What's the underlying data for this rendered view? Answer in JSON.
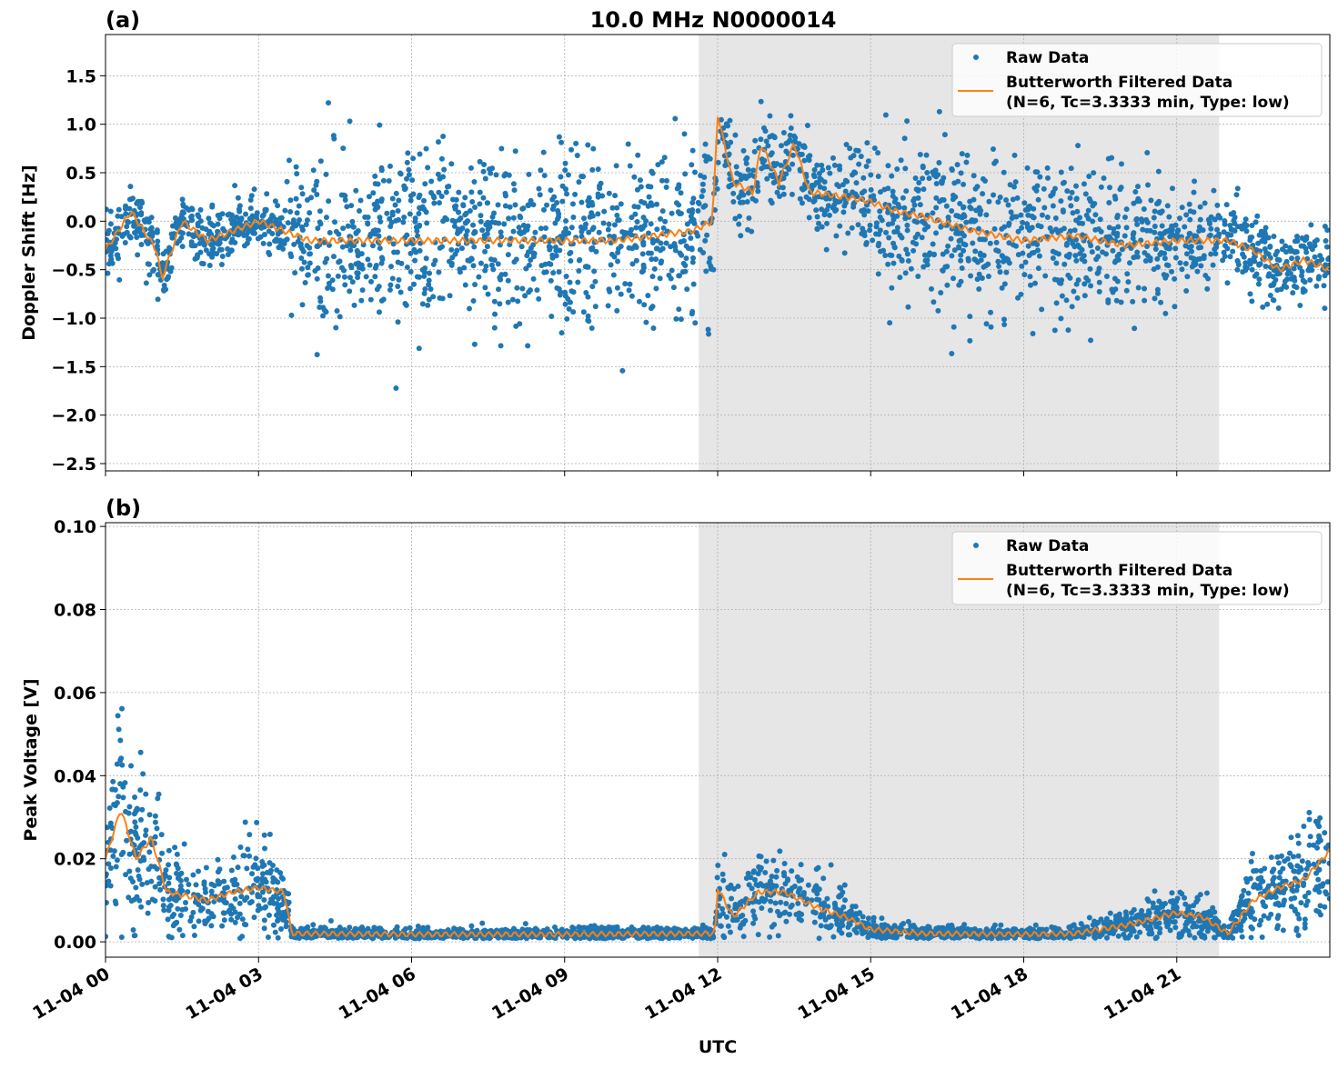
{
  "chart_data": [
    {
      "type": "scatter",
      "panel_label": "(a)",
      "title": "10.0 MHz N0000014",
      "ylabel": "Doppler Shift [Hz]",
      "xlabel": "",
      "xlim_hours": [
        0,
        24
      ],
      "ylim": [
        -2.575,
        1.925
      ],
      "yticks": [
        1.5,
        1.0,
        0.5,
        0.0,
        -0.5,
        -1.0,
        -1.5,
        -2.0,
        -2.5
      ],
      "ytick_labels": [
        "1.5",
        "1.0",
        "0.5",
        "0.0",
        "−0.5",
        "−1.0",
        "−1.5",
        "−2.0",
        "−2.5"
      ],
      "grid": true,
      "legend_position": "top-right",
      "shaded_interval_hours": [
        11.63,
        21.83
      ],
      "series": [
        {
          "name": "Raw Data",
          "style": "points",
          "color": "#1f77b4",
          "spread_hours": [
            0,
            3.5,
            3.6,
            11.9,
            12.1,
            14.8,
            15.2,
            20,
            21,
            22.2,
            24
          ],
          "spread": [
            0.15,
            0.15,
            0.45,
            0.45,
            0.2,
            0.2,
            0.4,
            0.4,
            0.25,
            0.2,
            0.2
          ]
        },
        {
          "name": "Butterworth Filtered Data",
          "name_line2": "(N=6, Tc=3.3333 min, Type: low)",
          "style": "line",
          "color": "#ff7f0e",
          "hours": [
            0,
            0.5,
            1.0,
            1.1,
            1.5,
            2,
            2.5,
            3,
            3.5,
            4,
            6,
            8,
            10,
            11.5,
            11.9,
            12.0,
            12.3,
            12.7,
            12.85,
            13.2,
            13.5,
            13.8,
            14.5,
            15,
            15.5,
            16,
            17,
            18,
            19,
            20,
            21,
            22,
            22.5,
            23,
            23.5,
            24
          ],
          "values": [
            -0.3,
            0.1,
            -0.3,
            -0.6,
            0.0,
            -0.2,
            -0.1,
            0.0,
            -0.1,
            -0.2,
            -0.2,
            -0.2,
            -0.2,
            -0.1,
            0.0,
            1.1,
            0.4,
            0.3,
            0.8,
            0.4,
            0.8,
            0.3,
            0.25,
            0.2,
            0.1,
            0.05,
            -0.1,
            -0.2,
            -0.15,
            -0.25,
            -0.2,
            -0.2,
            -0.3,
            -0.5,
            -0.4,
            -0.5
          ]
        }
      ]
    },
    {
      "type": "scatter",
      "panel_label": "(b)",
      "ylabel": "Peak Voltage [V]",
      "xlabel": "UTC",
      "xlim_hours": [
        0,
        24
      ],
      "ylim": [
        -0.0037,
        0.1009
      ],
      "yticks": [
        0.1,
        0.08,
        0.06,
        0.04,
        0.02,
        0.0
      ],
      "ytick_labels": [
        "0.10",
        "0.08",
        "0.06",
        "0.04",
        "0.02",
        "0.00"
      ],
      "xticks_hours": [
        0,
        3,
        6,
        9,
        12,
        15,
        18,
        21
      ],
      "xtick_labels": [
        "11-04 00",
        "11-04 03",
        "11-04 06",
        "11-04 09",
        "11-04 12",
        "11-04 15",
        "11-04 18",
        "11-04 21"
      ],
      "grid": true,
      "legend_position": "top-right",
      "shaded_interval_hours": [
        11.63,
        21.83
      ],
      "series": [
        {
          "name": "Raw Data",
          "style": "points",
          "color": "#1f77b4",
          "relative_spread": 0.45
        },
        {
          "name": "Butterworth Filtered Data",
          "name_line2": "(N=6, Tc=3.3333 min, Type: low)",
          "style": "line",
          "color": "#ff7f0e",
          "hours": [
            0,
            0.3,
            0.6,
            0.9,
            1.2,
            2,
            2.5,
            3,
            3.5,
            3.65,
            6,
            9,
            11.95,
            12.0,
            12.3,
            12.8,
            13.3,
            14,
            14.5,
            15,
            16,
            18,
            19,
            20,
            21,
            21.5,
            22.0,
            22.5,
            23,
            23.5,
            24
          ],
          "values": [
            0.02,
            0.032,
            0.02,
            0.025,
            0.012,
            0.01,
            0.012,
            0.013,
            0.012,
            0.002,
            0.0018,
            0.0018,
            0.002,
            0.013,
            0.006,
            0.012,
            0.012,
            0.008,
            0.006,
            0.003,
            0.002,
            0.0018,
            0.002,
            0.004,
            0.007,
            0.006,
            0.002,
            0.01,
            0.013,
            0.015,
            0.022
          ]
        }
      ]
    }
  ]
}
